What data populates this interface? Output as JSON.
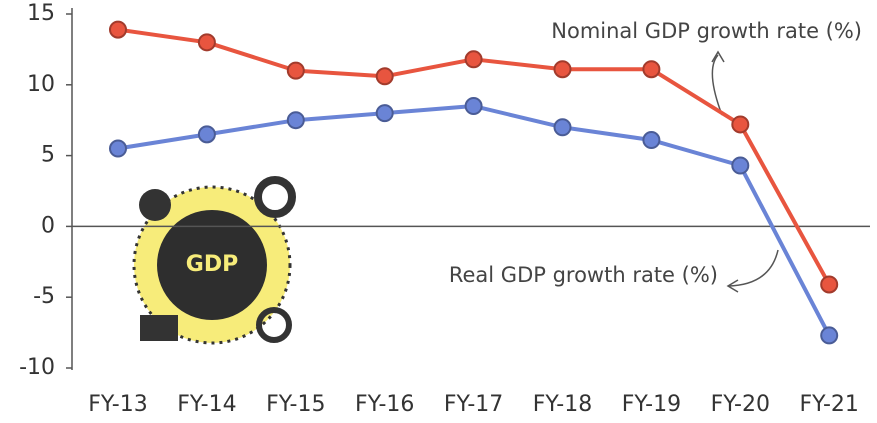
{
  "chart_data": {
    "type": "line",
    "categories": [
      "FY-13",
      "FY-14",
      "FY-15",
      "FY-16",
      "FY-17",
      "FY-18",
      "FY-19",
      "FY-20",
      "FY-21"
    ],
    "series": [
      {
        "name": "Nominal GDP growth rate (%)",
        "color": "#e8553f",
        "values": [
          13.9,
          13.0,
          11.0,
          10.6,
          11.8,
          11.1,
          11.1,
          7.2,
          -4.1
        ]
      },
      {
        "name": "Real GDP growth rate (%)",
        "color": "#6a84d6",
        "values": [
          5.5,
          6.5,
          7.5,
          8.0,
          8.5,
          7.0,
          6.1,
          4.3,
          -7.7
        ]
      }
    ],
    "ylim": [
      -10,
      15
    ],
    "yticks": [
      -10,
      -5,
      0,
      5,
      10,
      15
    ],
    "icon_text": "GDP"
  }
}
